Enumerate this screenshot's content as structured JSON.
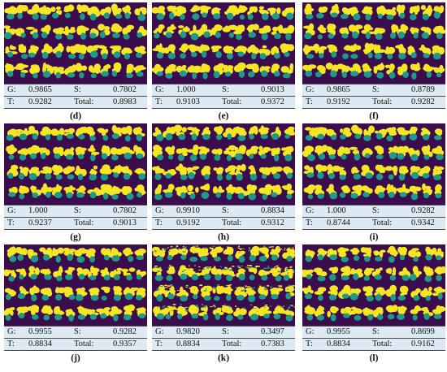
{
  "colors": {
    "background": "#3b0d4f",
    "leaf": "#f6e523",
    "teal": "#1f9a8a",
    "table": "#dde9f3"
  },
  "labels": {
    "g": "G:",
    "s": "S:",
    "t": "T:",
    "total": "Total:"
  },
  "panels": [
    {
      "id": "d",
      "caption": "(d)",
      "G": "0.9865",
      "S": "0.7802",
      "T": "0.9282",
      "Total": "0.8983"
    },
    {
      "id": "e",
      "caption": "(e)",
      "G": "1.000",
      "S": "0.9013",
      "T": "0.9103",
      "Total": "0.9372"
    },
    {
      "id": "f",
      "caption": "(f)",
      "G": "0.9865",
      "S": "0.8789",
      "T": "0.9192",
      "Total": "0.9282"
    },
    {
      "id": "g",
      "caption": "(g)",
      "G": "1.000",
      "S": "0.7802",
      "T": "0.9237",
      "Total": "0.9013"
    },
    {
      "id": "h",
      "caption": "(h)",
      "G": "0.9910",
      "S": "0.8834",
      "T": "0.9192",
      "Total": "0.9312"
    },
    {
      "id": "i",
      "caption": "(i)",
      "G": "1.000",
      "S": "0.9282",
      "T": "0.8744",
      "Total": "0.9342"
    },
    {
      "id": "j",
      "caption": "(j)",
      "G": "0.9955",
      "S": "0.9282",
      "T": "0.8834",
      "Total": "0.9357"
    },
    {
      "id": "k",
      "caption": "(k)",
      "G": "0.9820",
      "S": "0.3497",
      "T": "0.8834",
      "Total": "0.7383"
    },
    {
      "id": "l",
      "caption": "(l)",
      "G": "0.9955",
      "S": "0.8699",
      "T": "0.8834",
      "Total": "0.9162"
    }
  ]
}
